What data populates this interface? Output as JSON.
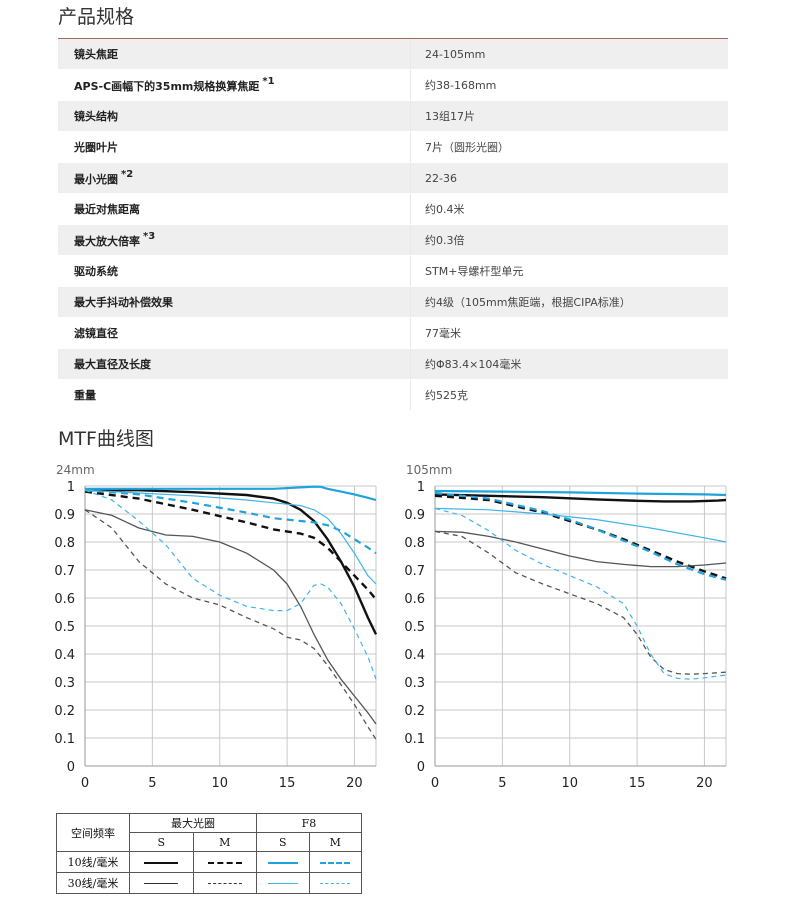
{
  "spec_section": {
    "title": "产品规格",
    "rows": [
      {
        "label": "镜头焦距",
        "value": "24-105mm",
        "note": ""
      },
      {
        "label": "APS-C画幅下的35mm规格换算焦距",
        "value": "约38-168mm",
        "note": "*1"
      },
      {
        "label": "镜头结构",
        "value": "13组17片",
        "note": ""
      },
      {
        "label": "光圈叶片",
        "value": "7片（圆形光圈）",
        "note": ""
      },
      {
        "label": "最小光圈",
        "value": "22-36",
        "note": "*2"
      },
      {
        "label": "最近对焦距离",
        "value": "约0.4米",
        "note": ""
      },
      {
        "label": "最大放大倍率",
        "value": "约0.3倍",
        "note": "*3"
      },
      {
        "label": "驱动系统",
        "value": "STM+导螺杆型单元",
        "note": ""
      },
      {
        "label": "最大手抖动补偿效果",
        "value": "约4级（105mm焦距端，根据CIPA标准）",
        "note": ""
      },
      {
        "label": "滤镜直径",
        "value": "77毫米",
        "note": ""
      },
      {
        "label": "最大直径及长度",
        "value": "约Φ83.4×104毫米",
        "note": ""
      },
      {
        "label": "重量",
        "value": "约525克",
        "note": ""
      }
    ]
  },
  "mtf_section": {
    "title": "MTF曲线图"
  },
  "chart_data": [
    {
      "type": "line",
      "title": "24mm",
      "xlim": [
        0,
        21.6
      ],
      "ylim": [
        0,
        1
      ],
      "xticks": [
        0,
        5,
        10,
        15,
        20
      ],
      "yticks": [
        0,
        0.1,
        0.2,
        0.3,
        0.4,
        0.5,
        0.6,
        0.7,
        0.8,
        0.9,
        1
      ],
      "ytick_labels": [
        "0",
        "0.1",
        "0.2",
        "0.3",
        "0.4",
        "0.5",
        "0.6",
        "0.7",
        "0.8",
        "0.9",
        "1"
      ],
      "grid": true,
      "series": [
        {
          "id": "max-10-s",
          "x": [
            0,
            4,
            8,
            12,
            14,
            15,
            16,
            17,
            18,
            19,
            20,
            21,
            21.6
          ],
          "y": [
            0.985,
            0.985,
            0.978,
            0.968,
            0.955,
            0.94,
            0.915,
            0.875,
            0.81,
            0.73,
            0.64,
            0.53,
            0.47
          ]
        },
        {
          "id": "max-10-m",
          "x": [
            0,
            4,
            8,
            12,
            14,
            16,
            17,
            18,
            19,
            20,
            21,
            21.6
          ],
          "y": [
            0.98,
            0.955,
            0.915,
            0.87,
            0.845,
            0.83,
            0.815,
            0.78,
            0.73,
            0.68,
            0.63,
            0.595
          ]
        },
        {
          "id": "max-30-s",
          "x": [
            0,
            2,
            4,
            6,
            8,
            10,
            12,
            14,
            15,
            16,
            17,
            18,
            19,
            20,
            21,
            21.6
          ],
          "y": [
            0.915,
            0.895,
            0.85,
            0.825,
            0.82,
            0.8,
            0.76,
            0.7,
            0.65,
            0.57,
            0.47,
            0.38,
            0.31,
            0.25,
            0.19,
            0.15
          ]
        },
        {
          "id": "max-30-m",
          "x": [
            0,
            2,
            4,
            6,
            8,
            10,
            12,
            14,
            15,
            16,
            17,
            18,
            19,
            20,
            21,
            21.6
          ],
          "y": [
            0.915,
            0.85,
            0.73,
            0.65,
            0.6,
            0.575,
            0.53,
            0.49,
            0.46,
            0.45,
            0.42,
            0.36,
            0.29,
            0.22,
            0.14,
            0.095
          ]
        },
        {
          "id": "f8-10-s",
          "x": [
            0,
            5,
            10,
            14,
            16,
            17,
            17.5,
            18,
            19,
            20,
            21,
            21.6
          ],
          "y": [
            0.99,
            0.99,
            0.99,
            0.99,
            0.995,
            0.998,
            0.997,
            0.99,
            0.98,
            0.97,
            0.958,
            0.95
          ]
        },
        {
          "id": "f8-10-m",
          "x": [
            0,
            4,
            8,
            12,
            14,
            16,
            17,
            18,
            19,
            20,
            21,
            21.6
          ],
          "y": [
            0.985,
            0.97,
            0.94,
            0.905,
            0.885,
            0.875,
            0.87,
            0.86,
            0.84,
            0.81,
            0.78,
            0.76
          ]
        },
        {
          "id": "f8-30-s",
          "x": [
            0,
            4,
            8,
            12,
            14,
            15,
            16,
            17,
            18,
            19,
            20,
            21,
            21.6
          ],
          "y": [
            0.985,
            0.975,
            0.965,
            0.95,
            0.94,
            0.935,
            0.93,
            0.915,
            0.885,
            0.83,
            0.76,
            0.68,
            0.65
          ]
        },
        {
          "id": "f8-30-m",
          "x": [
            0,
            2,
            4,
            6,
            7,
            8,
            10,
            12,
            14,
            15,
            16,
            17,
            17.5,
            18,
            19,
            20,
            21,
            21.6
          ],
          "y": [
            0.985,
            0.95,
            0.875,
            0.79,
            0.73,
            0.67,
            0.61,
            0.57,
            0.555,
            0.555,
            0.58,
            0.645,
            0.65,
            0.64,
            0.58,
            0.49,
            0.39,
            0.31
          ]
        }
      ]
    },
    {
      "type": "line",
      "title": "105mm",
      "xlim": [
        0,
        21.6
      ],
      "ylim": [
        0,
        1
      ],
      "xticks": [
        0,
        5,
        10,
        15,
        20
      ],
      "yticks": [
        0,
        0.1,
        0.2,
        0.3,
        0.4,
        0.5,
        0.6,
        0.7,
        0.8,
        0.9,
        1
      ],
      "ytick_labels": [
        "0",
        "0.1",
        "0.2",
        "0.3",
        "0.4",
        "0.5",
        "0.6",
        "0.7",
        "0.8",
        "0.9",
        "1"
      ],
      "grid": true,
      "series": [
        {
          "id": "max-10-s",
          "x": [
            0,
            4,
            8,
            12,
            15,
            17,
            19,
            21,
            21.6
          ],
          "y": [
            0.97,
            0.965,
            0.96,
            0.952,
            0.947,
            0.945,
            0.945,
            0.948,
            0.95
          ]
        },
        {
          "id": "max-10-m",
          "x": [
            0,
            4,
            8,
            10,
            12,
            14,
            16,
            18,
            20,
            21.6
          ],
          "y": [
            0.965,
            0.95,
            0.905,
            0.875,
            0.845,
            0.81,
            0.77,
            0.73,
            0.695,
            0.67
          ]
        },
        {
          "id": "max-30-s",
          "x": [
            0,
            2,
            4,
            6,
            8,
            10,
            12,
            14,
            16,
            18,
            20,
            21.6
          ],
          "y": [
            0.838,
            0.835,
            0.82,
            0.8,
            0.775,
            0.75,
            0.73,
            0.72,
            0.712,
            0.712,
            0.718,
            0.725
          ]
        },
        {
          "id": "max-30-m",
          "x": [
            0,
            2,
            4,
            6,
            8,
            10,
            12,
            14,
            15,
            16,
            17,
            18,
            19,
            20,
            21.6
          ],
          "y": [
            0.838,
            0.82,
            0.76,
            0.69,
            0.65,
            0.615,
            0.58,
            0.53,
            0.47,
            0.39,
            0.345,
            0.33,
            0.328,
            0.33,
            0.335
          ]
        },
        {
          "id": "f8-10-s",
          "x": [
            0,
            5,
            10,
            15,
            20,
            21.6
          ],
          "y": [
            0.982,
            0.98,
            0.977,
            0.973,
            0.97,
            0.968
          ]
        },
        {
          "id": "f8-10-m",
          "x": [
            0,
            4,
            8,
            10,
            12,
            14,
            16,
            18,
            20,
            21.6
          ],
          "y": [
            0.975,
            0.955,
            0.91,
            0.88,
            0.845,
            0.805,
            0.765,
            0.72,
            0.685,
            0.665
          ]
        },
        {
          "id": "f8-30-s",
          "x": [
            0,
            4,
            8,
            12,
            16,
            20,
            21.6
          ],
          "y": [
            0.92,
            0.915,
            0.9,
            0.88,
            0.85,
            0.815,
            0.8
          ]
        },
        {
          "id": "f8-30-m",
          "x": [
            0,
            2,
            4,
            6,
            8,
            10,
            12,
            14,
            15,
            16,
            17,
            18,
            19,
            20,
            21.6
          ],
          "y": [
            0.92,
            0.895,
            0.84,
            0.77,
            0.72,
            0.68,
            0.64,
            0.58,
            0.5,
            0.4,
            0.33,
            0.313,
            0.31,
            0.315,
            0.325
          ]
        }
      ]
    }
  ],
  "legend": {
    "spatial_frequency": "空间频率",
    "max_aperture": "最大光圈",
    "f8": "F8",
    "s": "S",
    "m": "M",
    "row_10": "10线/毫米",
    "row_30": "30线/毫米"
  },
  "styles": {
    "max-10-s": {
      "color": "#111111",
      "width": 2.4,
      "dash": ""
    },
    "max-10-m": {
      "color": "#111111",
      "width": 2.4,
      "dash": "7,5"
    },
    "max-30-s": {
      "color": "#555555",
      "width": 1.3,
      "dash": ""
    },
    "max-30-m": {
      "color": "#555555",
      "width": 1.3,
      "dash": "5,4"
    },
    "f8-10-s": {
      "color": "#1fa3dc",
      "width": 2.2,
      "dash": ""
    },
    "f8-10-m": {
      "color": "#1fa3dc",
      "width": 2.2,
      "dash": "7,5"
    },
    "f8-30-s": {
      "color": "#3fb4e6",
      "width": 1.2,
      "dash": ""
    },
    "f8-30-m": {
      "color": "#3fb4e6",
      "width": 1.2,
      "dash": "5,4"
    }
  }
}
